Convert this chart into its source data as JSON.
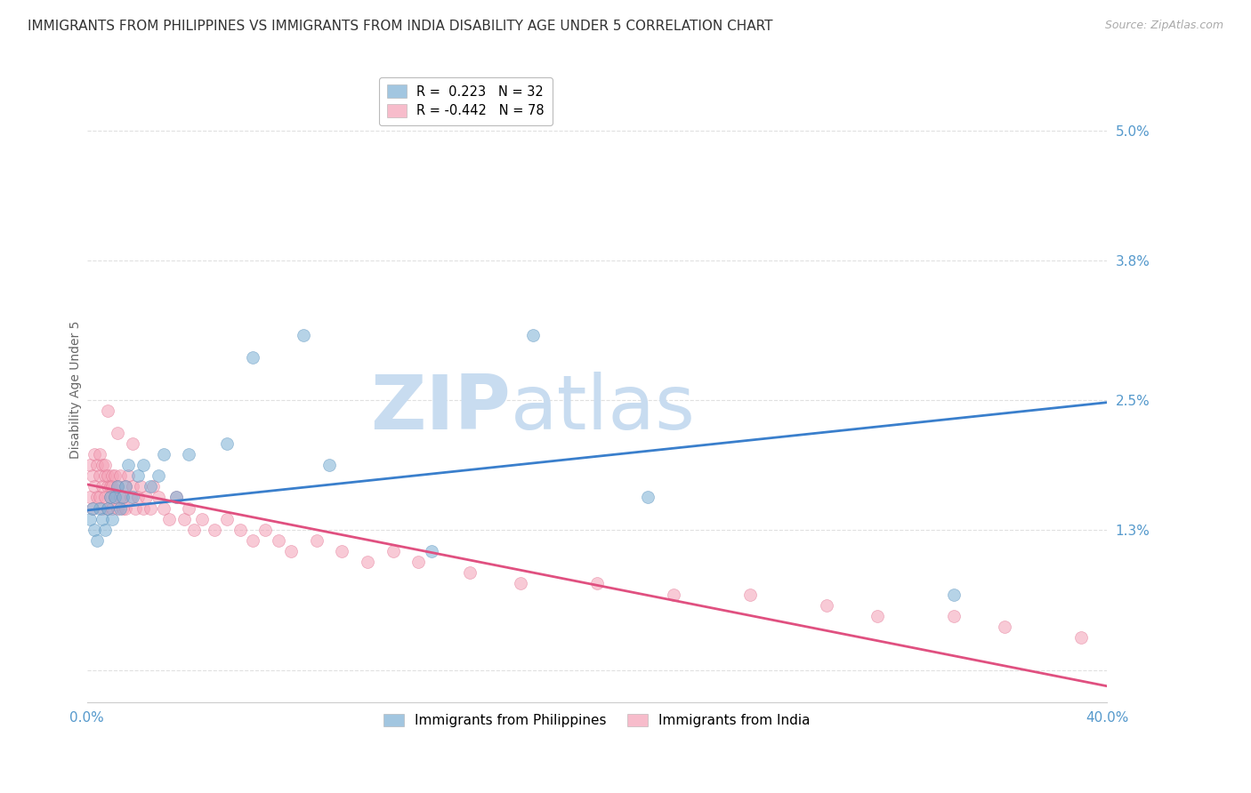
{
  "title": "IMMIGRANTS FROM PHILIPPINES VS IMMIGRANTS FROM INDIA DISABILITY AGE UNDER 5 CORRELATION CHART",
  "source": "Source: ZipAtlas.com",
  "ylabel": "Disability Age Under 5",
  "yticks": [
    0.0,
    0.013,
    0.025,
    0.038,
    0.05
  ],
  "ytick_labels": [
    "",
    "1.3%",
    "2.5%",
    "3.8%",
    "5.0%"
  ],
  "xticks": [
    0.0,
    0.1,
    0.2,
    0.3,
    0.4
  ],
  "xlim": [
    0.0,
    0.4
  ],
  "ylim": [
    -0.003,
    0.055
  ],
  "legend_entries": [
    {
      "label": "R =  0.223   N = 32",
      "color": "#7BAFD4"
    },
    {
      "label": "R = -0.442   N = 78",
      "color": "#F4A0B5"
    }
  ],
  "series_philippines": {
    "color": "#7BAFD4",
    "edge_color": "#5590BB",
    "alpha": 0.55,
    "marker_size": 100,
    "x": [
      0.001,
      0.002,
      0.003,
      0.004,
      0.005,
      0.006,
      0.007,
      0.008,
      0.009,
      0.01,
      0.011,
      0.012,
      0.013,
      0.014,
      0.015,
      0.016,
      0.018,
      0.02,
      0.022,
      0.025,
      0.028,
      0.03,
      0.035,
      0.04,
      0.055,
      0.065,
      0.085,
      0.095,
      0.135,
      0.175,
      0.22,
      0.34
    ],
    "y": [
      0.014,
      0.015,
      0.013,
      0.012,
      0.015,
      0.014,
      0.013,
      0.015,
      0.016,
      0.014,
      0.016,
      0.017,
      0.015,
      0.016,
      0.017,
      0.019,
      0.016,
      0.018,
      0.019,
      0.017,
      0.018,
      0.02,
      0.016,
      0.02,
      0.021,
      0.029,
      0.031,
      0.019,
      0.011,
      0.031,
      0.016,
      0.007
    ]
  },
  "series_india": {
    "color": "#F4A0B5",
    "edge_color": "#E07090",
    "alpha": 0.55,
    "marker_size": 100,
    "x": [
      0.001,
      0.001,
      0.002,
      0.002,
      0.003,
      0.003,
      0.004,
      0.004,
      0.005,
      0.005,
      0.005,
      0.006,
      0.006,
      0.006,
      0.007,
      0.007,
      0.007,
      0.008,
      0.008,
      0.008,
      0.009,
      0.009,
      0.01,
      0.01,
      0.01,
      0.011,
      0.011,
      0.012,
      0.012,
      0.013,
      0.013,
      0.014,
      0.014,
      0.015,
      0.015,
      0.016,
      0.017,
      0.018,
      0.019,
      0.02,
      0.021,
      0.022,
      0.023,
      0.025,
      0.026,
      0.028,
      0.03,
      0.032,
      0.035,
      0.038,
      0.04,
      0.042,
      0.045,
      0.05,
      0.055,
      0.06,
      0.065,
      0.07,
      0.075,
      0.08,
      0.09,
      0.1,
      0.11,
      0.12,
      0.13,
      0.15,
      0.17,
      0.2,
      0.23,
      0.26,
      0.29,
      0.31,
      0.34,
      0.36,
      0.39,
      0.008,
      0.012,
      0.018
    ],
    "y": [
      0.016,
      0.019,
      0.018,
      0.015,
      0.017,
      0.02,
      0.016,
      0.019,
      0.018,
      0.016,
      0.02,
      0.017,
      0.019,
      0.015,
      0.018,
      0.016,
      0.019,
      0.017,
      0.018,
      0.015,
      0.017,
      0.016,
      0.018,
      0.017,
      0.015,
      0.016,
      0.018,
      0.017,
      0.015,
      0.016,
      0.018,
      0.016,
      0.015,
      0.017,
      0.015,
      0.018,
      0.016,
      0.017,
      0.015,
      0.016,
      0.017,
      0.015,
      0.016,
      0.015,
      0.017,
      0.016,
      0.015,
      0.014,
      0.016,
      0.014,
      0.015,
      0.013,
      0.014,
      0.013,
      0.014,
      0.013,
      0.012,
      0.013,
      0.012,
      0.011,
      0.012,
      0.011,
      0.01,
      0.011,
      0.01,
      0.009,
      0.008,
      0.008,
      0.007,
      0.007,
      0.006,
      0.005,
      0.005,
      0.004,
      0.003,
      0.024,
      0.022,
      0.021
    ]
  },
  "trendline_philippines": {
    "color": "#3A7FCC",
    "x_start": 0.0,
    "x_end": 0.4,
    "y_start": 0.0148,
    "y_end": 0.0248,
    "linewidth": 2.0
  },
  "trendline_india": {
    "color": "#E05080",
    "x_start": 0.0,
    "x_end": 0.4,
    "y_start": 0.0172,
    "y_end": -0.0015,
    "linewidth": 2.0
  },
  "watermark_zip": "ZIP",
  "watermark_atlas": "atlas",
  "watermark_color": "#C8DCF0",
  "background_color": "#FFFFFF",
  "grid_color": "#DDDDDD",
  "axis_color": "#5599CC",
  "title_fontsize": 11,
  "label_fontsize": 10,
  "tick_fontsize": 11
}
